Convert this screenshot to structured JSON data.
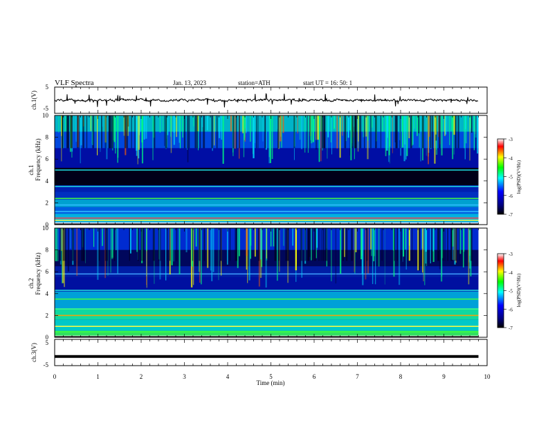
{
  "header": {
    "title": "VLF  Spectra",
    "date": "Jan.  13,  2023",
    "station": "station=ATH",
    "start": "start  UT  =    16: 50: 1"
  },
  "colors": {
    "background": "#ffffff",
    "axis": "#000000",
    "trace": "#000000",
    "colormap": [
      "#000000",
      "#00007f",
      "#0000ff",
      "#00ffff",
      "#00ff00",
      "#ffff00",
      "#ff0000",
      "#ffffff"
    ]
  },
  "chart_data": [
    {
      "type": "line",
      "name": "ch1-waveform",
      "ylabel": "ch.1(V)",
      "ylim": [
        -5,
        5
      ],
      "yticks": [
        "5",
        "-5"
      ],
      "xlim": [
        0,
        10
      ],
      "description_values": {
        "baseline": 0,
        "spike_range": [
          -3,
          3
        ]
      }
    },
    {
      "type": "heatmap",
      "name": "ch1-spectrogram",
      "ylabel_line1": "ch.1",
      "ylabel_line2": "Frequency  (kHz)",
      "ylim": [
        0,
        10
      ],
      "yticks": [
        "0",
        "2",
        "4",
        "6",
        "8",
        "10"
      ],
      "xlim": [
        0,
        9.8
      ],
      "colorbar": {
        "label": "log(PSD)(V²/Hz)",
        "range": [
          -7,
          -3
        ],
        "ticks": [
          "-3",
          "-4",
          "-5",
          "-6",
          "-7"
        ]
      }
    },
    {
      "type": "heatmap",
      "name": "ch2-spectrogram",
      "ylabel_line1": "ch.2",
      "ylabel_line2": "Frequency  (kHz)",
      "ylim": [
        0,
        10
      ],
      "yticks": [
        "0",
        "2",
        "4",
        "6",
        "8",
        "10"
      ],
      "xlim": [
        0,
        9.8
      ],
      "colorbar": {
        "label": "log(PSD)(V²/Hz)",
        "range": [
          -7,
          -3
        ],
        "ticks": [
          "-3",
          "-4",
          "-5",
          "-6",
          "-7"
        ]
      }
    },
    {
      "type": "line",
      "name": "ch3-waveform",
      "ylabel": "ch.3(V)",
      "ylim": [
        -5,
        5
      ],
      "yticks": [
        "5",
        "-5"
      ],
      "xlim": [
        0,
        10
      ],
      "description_values": {
        "baseline": -1.5
      }
    }
  ],
  "xaxis": {
    "label": "Time  (min)",
    "ticks": [
      "0",
      "1",
      "2",
      "3",
      "4",
      "5",
      "6",
      "7",
      "8",
      "9",
      "10"
    ]
  }
}
